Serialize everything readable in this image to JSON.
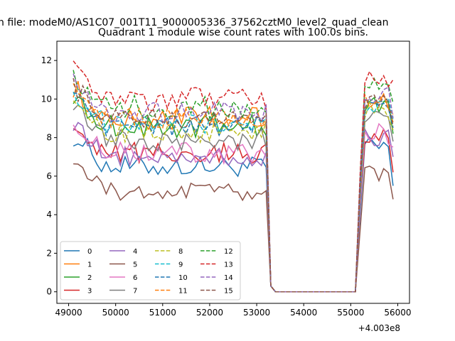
{
  "chart_data": {
    "type": "line",
    "suptitle": "n file: modeM0/AS1C07_001T11_9000005336_37562cztM0_level2_quad_clean",
    "title": "Quadrant 1 module wise count rates with 100.0s bins.",
    "xlabel": "",
    "ylabel": "",
    "x_offset_label": "+4.003e8",
    "xlim": [
      48750,
      56250
    ],
    "ylim": [
      -0.6,
      13.0
    ],
    "xticks": [
      49000,
      50000,
      51000,
      52000,
      53000,
      54000,
      55000,
      56000
    ],
    "xtick_labels": [
      "49000",
      "50000",
      "51000",
      "52000",
      "53000",
      "54000",
      "55000",
      "56000"
    ],
    "yticks": [
      0,
      2,
      4,
      6,
      8,
      10,
      12
    ],
    "ytick_labels": [
      "0",
      "2",
      "4",
      "6",
      "8",
      "10",
      "12"
    ],
    "grid": false,
    "legend": {
      "placement": "lower-left",
      "columns": 4
    },
    "x_segments": {
      "start": 49100,
      "step": 100,
      "first_end": 53300,
      "gap_end": 55100,
      "last_end": 55900
    },
    "series": [
      {
        "name": "0",
        "color": "#1f77b4",
        "dash": "solid",
        "base": 6.5,
        "amp": 0.55,
        "end": 5.5
      },
      {
        "name": "1",
        "color": "#ff7f0e",
        "dash": "solid",
        "base": 9.0,
        "amp": 0.6,
        "end": 8.8
      },
      {
        "name": "2",
        "color": "#2ca02c",
        "dash": "solid",
        "base": 8.6,
        "amp": 0.6,
        "end": 8.2
      },
      {
        "name": "3",
        "color": "#d62728",
        "dash": "solid",
        "base": 7.2,
        "amp": 0.55,
        "end": 6.2
      },
      {
        "name": "4",
        "color": "#9467bd",
        "dash": "solid",
        "base": 7.0,
        "amp": 0.5,
        "end": 7.0
      },
      {
        "name": "5",
        "color": "#8c564b",
        "dash": "solid",
        "base": 5.2,
        "amp": 0.45,
        "end": 4.8
      },
      {
        "name": "6",
        "color": "#e377c2",
        "dash": "solid",
        "base": 7.2,
        "amp": 0.6,
        "end": 7.5
      },
      {
        "name": "7",
        "color": "#7f7f7f",
        "dash": "solid",
        "base": 7.9,
        "amp": 0.6,
        "end": 7.8
      },
      {
        "name": "8",
        "color": "#bcbd22",
        "dash": "dashed",
        "base": 8.3,
        "amp": 0.55,
        "end": 8.4
      },
      {
        "name": "9",
        "color": "#17becf",
        "dash": "dashed",
        "base": 8.7,
        "amp": 0.5,
        "end": 8.9
      },
      {
        "name": "10",
        "color": "#1f77b4",
        "dash": "dashed",
        "base": 8.6,
        "amp": 0.5,
        "end": 8.5
      },
      {
        "name": "11",
        "color": "#ff7f0e",
        "dash": "dashed",
        "base": 9.0,
        "amp": 0.55,
        "end": 9.2
      },
      {
        "name": "12",
        "color": "#2ca02c",
        "dash": "dashed",
        "base": 9.6,
        "amp": 0.6,
        "end": 9.8
      },
      {
        "name": "13",
        "color": "#d62728",
        "dash": "dashed",
        "base": 10.0,
        "amp": 0.6,
        "end": 11.0
      },
      {
        "name": "14",
        "color": "#9467bd",
        "dash": "dashed",
        "base": 9.3,
        "amp": 0.55,
        "end": 9.0
      },
      {
        "name": "15",
        "color": "#8c564b",
        "dash": "dashed",
        "base": 9.0,
        "amp": 0.55,
        "end": 8.6
      }
    ]
  }
}
